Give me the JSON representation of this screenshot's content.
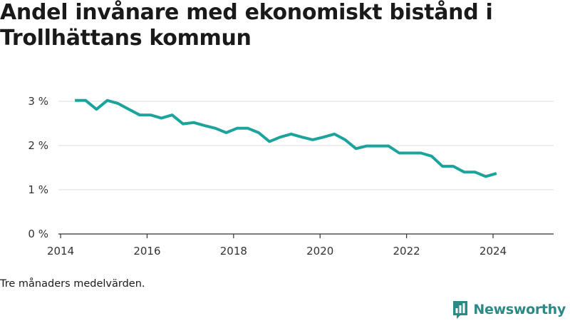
{
  "title": "Andel invånare med ekonomiskt bistånd i Trollhättans kommun",
  "note": "Tre månaders medelvärden.",
  "brand": {
    "name": "Newsworthy",
    "icon": "bar-chart-logo-icon",
    "color": "#2a8a86"
  },
  "colors": {
    "line": "#1ba39c",
    "grid": "#dddddd",
    "axis": "#333333"
  },
  "chart_data": {
    "type": "line",
    "title": "Andel invånare med ekonomiskt bistånd i Trollhättans kommun",
    "xlabel": "",
    "ylabel": "",
    "xlim": [
      2013.95,
      2025.4
    ],
    "ylim": [
      0,
      3
    ],
    "x_ticks": [
      2014,
      2016,
      2018,
      2020,
      2022,
      2024
    ],
    "y_ticks": [
      {
        "v": 0,
        "label": "0 %"
      },
      {
        "v": 1,
        "label": "1 %"
      },
      {
        "v": 2,
        "label": "2 %"
      },
      {
        "v": 3,
        "label": "3 %"
      }
    ],
    "grid": {
      "y": true,
      "x": false
    },
    "series": [
      {
        "x": [
          2014.33,
          2014.58,
          2014.83,
          2015.08,
          2015.33,
          2015.58,
          2015.83,
          2016.08,
          2016.33,
          2016.58,
          2016.83,
          2017.08,
          2017.33,
          2017.58,
          2017.83,
          2018.08,
          2018.33,
          2018.58,
          2018.83,
          2019.08,
          2019.33,
          2019.58,
          2019.83,
          2020.08,
          2020.33,
          2020.58,
          2020.83,
          2021.08,
          2021.33,
          2021.58,
          2021.83,
          2022.08,
          2022.33,
          2022.58,
          2022.83,
          2023.08,
          2023.33,
          2023.58,
          2023.83,
          2024.08
        ],
        "y": [
          3.02,
          3.02,
          2.82,
          3.02,
          2.95,
          2.82,
          2.69,
          2.69,
          2.62,
          2.69,
          2.49,
          2.52,
          2.45,
          2.39,
          2.29,
          2.39,
          2.39,
          2.29,
          2.09,
          2.19,
          2.26,
          2.19,
          2.13,
          2.19,
          2.26,
          2.13,
          1.93,
          1.99,
          1.99,
          1.99,
          1.83,
          1.83,
          1.83,
          1.76,
          1.53,
          1.53,
          1.4,
          1.4,
          1.3,
          1.37
        ]
      }
    ]
  }
}
